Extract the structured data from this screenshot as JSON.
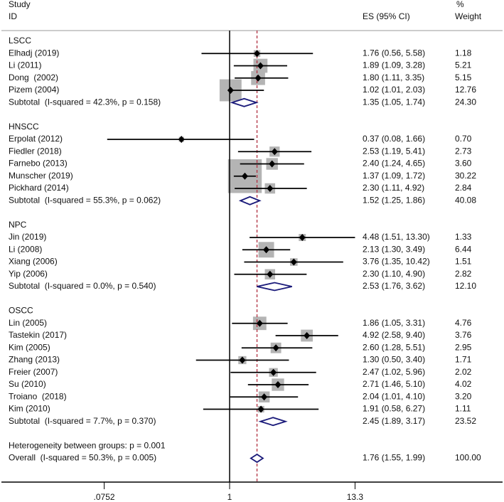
{
  "chart_data": {
    "type": "forest",
    "scale": "log",
    "null_value": 1,
    "colors": {
      "marker": "#000000",
      "weight_box": "#b4b4b4",
      "diamond": "#1a1a7a",
      "overall_line": "#b03040",
      "axis": "#000000"
    },
    "header": {
      "study": "Study",
      "id": "ID",
      "es": "ES (95% CI)",
      "pct": "%",
      "weight": "Weight"
    },
    "groups": [
      {
        "name": "LSCC",
        "studies": [
          {
            "label": "Elhadj (2019)",
            "es": 1.76,
            "lo": 0.56,
            "hi": 5.58,
            "es_text": "1.76 (0.56, 5.58)",
            "weight": 1.18,
            "weight_text": "1.18"
          },
          {
            "label": "Li (2011)",
            "es": 1.89,
            "lo": 1.09,
            "hi": 3.28,
            "es_text": "1.89 (1.09, 3.28)",
            "weight": 5.21,
            "weight_text": "5.21"
          },
          {
            "label": "Dong  (2002)",
            "es": 1.8,
            "lo": 1.11,
            "hi": 3.35,
            "es_text": "1.80 (1.11, 3.35)",
            "weight": 5.15,
            "weight_text": "5.15"
          },
          {
            "label": "Pizem (2004)",
            "es": 1.02,
            "lo": 1.01,
            "hi": 2.03,
            "es_text": "1.02 (1.01, 2.03)",
            "weight": 12.76,
            "weight_text": "12.76"
          }
        ],
        "subtotal": {
          "label": "Subtotal  (I-squared = 42.3%, p = 0.158)",
          "es": 1.35,
          "lo": 1.05,
          "hi": 1.74,
          "es_text": "1.35 (1.05, 1.74)",
          "weight_text": "24.30"
        }
      },
      {
        "name": "HNSCC",
        "studies": [
          {
            "label": "Erpolat (2012)",
            "es": 0.37,
            "lo": 0.08,
            "hi": 1.66,
            "es_text": "0.37 (0.08, 1.66)",
            "weight": 0.7,
            "weight_text": "0.70"
          },
          {
            "label": "Fiedler (2018)",
            "es": 2.53,
            "lo": 1.19,
            "hi": 5.41,
            "es_text": "2.53 (1.19, 5.41)",
            "weight": 2.73,
            "weight_text": "2.73"
          },
          {
            "label": "Farnebo (2013)",
            "es": 2.4,
            "lo": 1.24,
            "hi": 4.65,
            "es_text": "2.40 (1.24, 4.65)",
            "weight": 3.6,
            "weight_text": "3.60"
          },
          {
            "label": "Munscher (2019)",
            "es": 1.37,
            "lo": 1.09,
            "hi": 1.72,
            "es_text": "1.37 (1.09, 1.72)",
            "weight": 30.22,
            "weight_text": "30.22"
          },
          {
            "label": "Pickhard (2014)",
            "es": 2.3,
            "lo": 1.11,
            "hi": 4.92,
            "es_text": "2.30 (1.11, 4.92)",
            "weight": 2.84,
            "weight_text": "2.84"
          }
        ],
        "subtotal": {
          "label": "Subtotal  (I-squared = 55.3%, p = 0.062)",
          "es": 1.52,
          "lo": 1.25,
          "hi": 1.86,
          "es_text": "1.52 (1.25, 1.86)",
          "weight_text": "40.08"
        }
      },
      {
        "name": "NPC",
        "studies": [
          {
            "label": "Jin (2019)",
            "es": 4.48,
            "lo": 1.51,
            "hi": 13.3,
            "es_text": "4.48 (1.51, 13.30)",
            "weight": 1.33,
            "weight_text": "1.33"
          },
          {
            "label": "Li (2008)",
            "es": 2.13,
            "lo": 1.3,
            "hi": 3.49,
            "es_text": "2.13 (1.30, 3.49)",
            "weight": 6.44,
            "weight_text": "6.44"
          },
          {
            "label": "Xiang (2006)",
            "es": 3.76,
            "lo": 1.35,
            "hi": 10.42,
            "es_text": "3.76 (1.35, 10.42)",
            "weight": 1.51,
            "weight_text": "1.51"
          },
          {
            "label": "Yip (2006)",
            "es": 2.3,
            "lo": 1.1,
            "hi": 4.9,
            "es_text": "2.30 (1.10, 4.90)",
            "weight": 2.82,
            "weight_text": "2.82"
          }
        ],
        "subtotal": {
          "label": "Subtotal  (I-squared = 0.0%, p = 0.540)",
          "es": 2.53,
          "lo": 1.76,
          "hi": 3.62,
          "es_text": "2.53 (1.76, 3.62)",
          "weight_text": "12.10"
        }
      },
      {
        "name": "OSCC",
        "studies": [
          {
            "label": "Lin (2005)",
            "es": 1.86,
            "lo": 1.05,
            "hi": 3.31,
            "es_text": "1.86 (1.05, 3.31)",
            "weight": 4.76,
            "weight_text": "4.76"
          },
          {
            "label": "Tastekin (2017)",
            "es": 4.92,
            "lo": 2.58,
            "hi": 9.4,
            "es_text": "4.92 (2.58, 9.40)",
            "weight": 3.76,
            "weight_text": "3.76"
          },
          {
            "label": "Kim (2005)",
            "es": 2.6,
            "lo": 1.28,
            "hi": 5.51,
            "es_text": "2.60 (1.28, 5.51)",
            "weight": 2.95,
            "weight_text": "2.95"
          },
          {
            "label": "Zhang (2013)",
            "es": 1.3,
            "lo": 0.5,
            "hi": 3.4,
            "es_text": "1.30 (0.50, 3.40)",
            "weight": 1.71,
            "weight_text": "1.71"
          },
          {
            "label": "Freier (2007)",
            "es": 2.47,
            "lo": 1.02,
            "hi": 5.96,
            "es_text": "2.47 (1.02, 5.96)",
            "weight": 2.02,
            "weight_text": "2.02"
          },
          {
            "label": "Su (2010)",
            "es": 2.71,
            "lo": 1.46,
            "hi": 5.1,
            "es_text": "2.71 (1.46, 5.10)",
            "weight": 4.02,
            "weight_text": "4.02"
          },
          {
            "label": "Troiano  (2018)",
            "es": 2.04,
            "lo": 1.01,
            "hi": 4.1,
            "es_text": "2.04 (1.01, 4.10)",
            "weight": 3.2,
            "weight_text": "3.20"
          },
          {
            "label": "Kim (2010)",
            "es": 1.91,
            "lo": 0.58,
            "hi": 6.27,
            "es_text": "1.91 (0.58, 6.27)",
            "weight": 1.11,
            "weight_text": "1.11"
          }
        ],
        "subtotal": {
          "label": "Subtotal  (I-squared = 7.7%, p = 0.370)",
          "es": 2.45,
          "lo": 1.89,
          "hi": 3.17,
          "es_text": "2.45 (1.89, 3.17)",
          "weight_text": "23.52"
        }
      }
    ],
    "heterogeneity": "Heterogeneity between groups: p = 0.001",
    "overall": {
      "label": "Overall  (I-squared = 50.3%, p = 0.005)",
      "es": 1.76,
      "lo": 1.55,
      "hi": 1.99,
      "es_text": "1.76 (1.55, 1.99)",
      "weight_text": "100.00"
    },
    "x_ticks": [
      {
        "value": 0.0752,
        "label": ".0752"
      },
      {
        "value": 1,
        "label": "1"
      },
      {
        "value": 13.3,
        "label": "13.3"
      }
    ],
    "xlim": [
      0.0752,
      13.3
    ]
  }
}
